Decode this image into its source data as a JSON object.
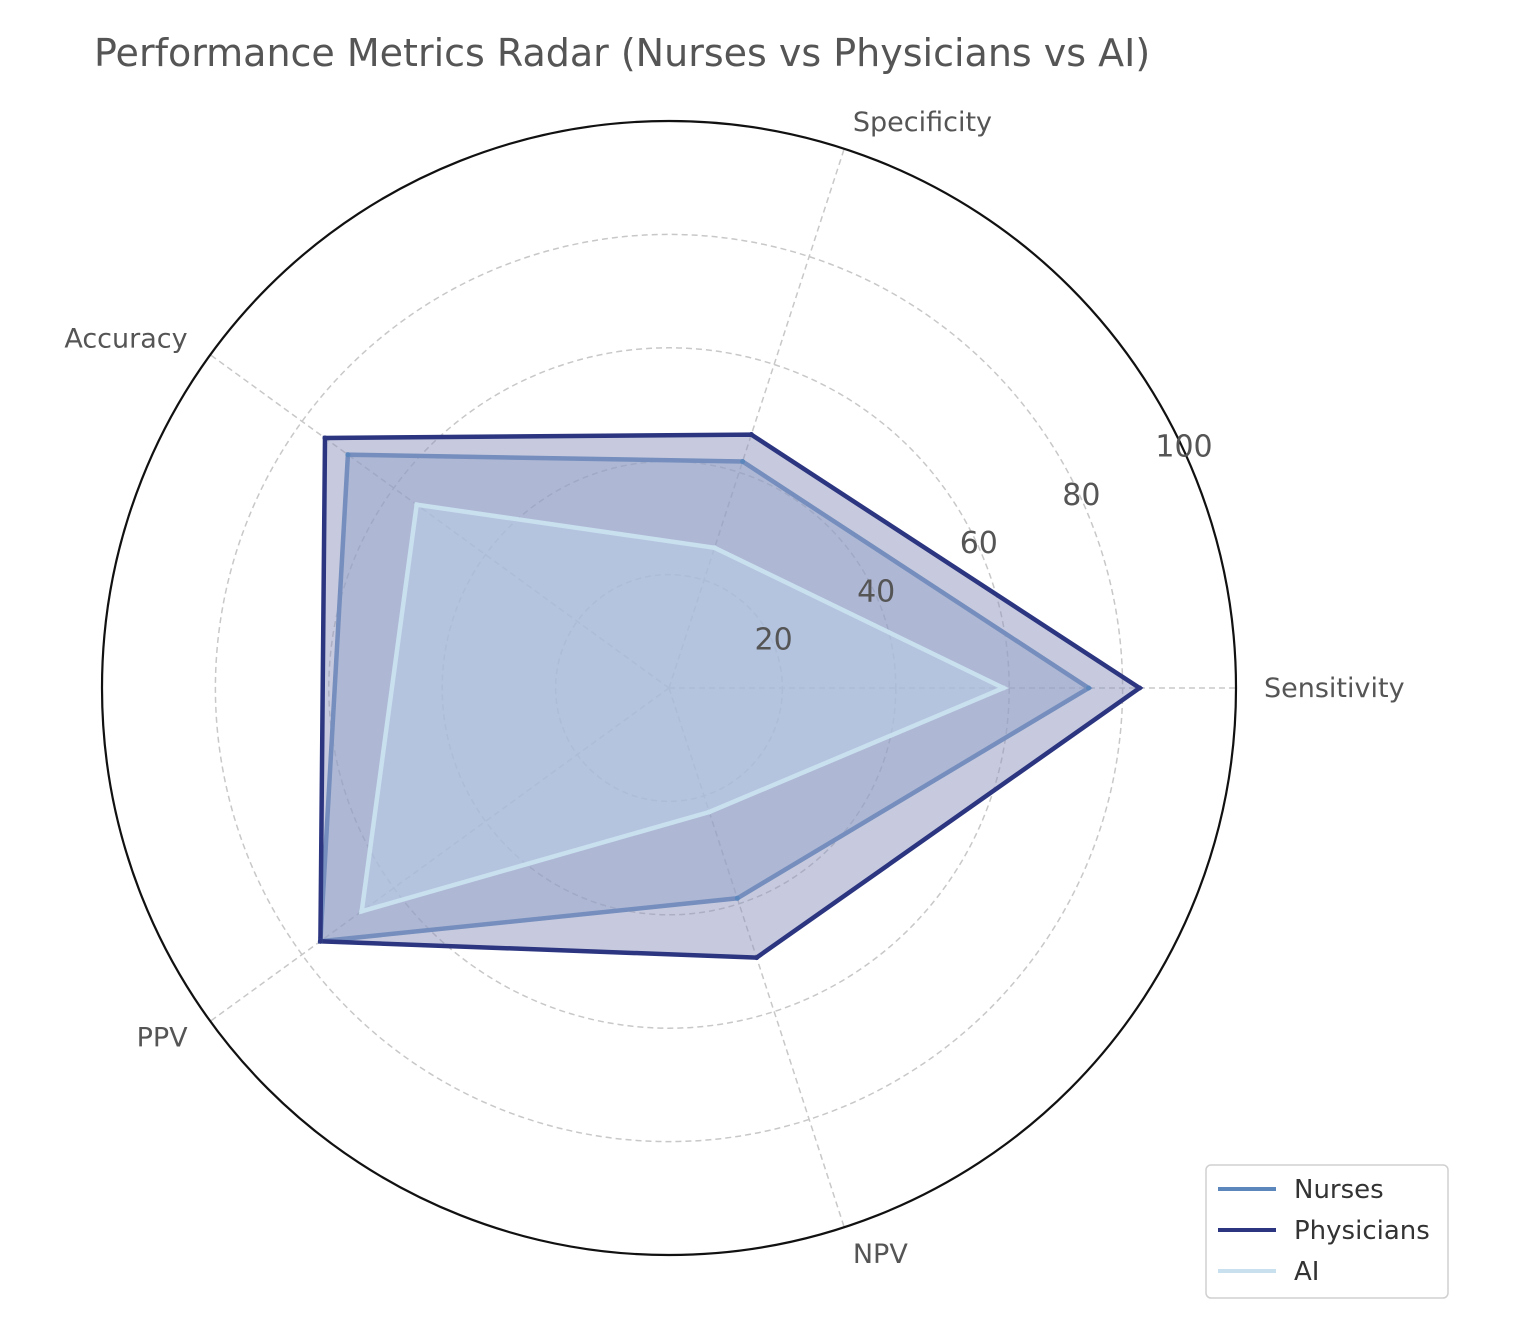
{
  "chart_data": {
    "type": "radar",
    "title": "Performance Metrics Radar (Nurses vs Physicians vs AI)",
    "axes": [
      "Sensitivity",
      "Specificity",
      "Accuracy",
      "PPV",
      "NPV"
    ],
    "rlim": [
      0,
      100
    ],
    "rticks": [
      20,
      40,
      60,
      80,
      100
    ],
    "grid": true,
    "legend_position": "bottom-right",
    "series": [
      {
        "name": "Nurses",
        "values": [
          74,
          42,
          70,
          76,
          39
        ],
        "color": "#5b87bd",
        "fill": "#9ab3d6"
      },
      {
        "name": "Physicians",
        "values": [
          83,
          47,
          75,
          76,
          50
        ],
        "color": "#2b3580",
        "fill": "#8f95bd"
      },
      {
        "name": "AI",
        "values": [
          59,
          26,
          55,
          67,
          23
        ],
        "color": "#c9e0ef",
        "fill": "#b9cfe7"
      }
    ]
  }
}
